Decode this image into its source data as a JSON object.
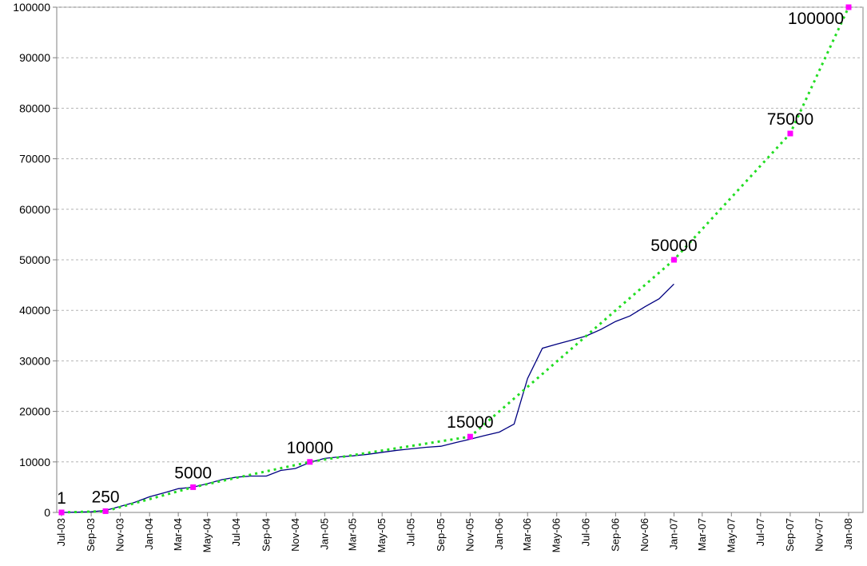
{
  "chart_data": {
    "type": "line",
    "title": "",
    "xlabel": "",
    "ylabel": "",
    "ylim": [
      0,
      100000
    ],
    "grid": true,
    "y_ticks": [
      "0",
      "10000",
      "20000",
      "30000",
      "40000",
      "50000",
      "60000",
      "70000",
      "80000",
      "90000",
      "100000"
    ],
    "x_ticks": [
      "Jul-03",
      "Sep-03",
      "Nov-03",
      "Jan-04",
      "Mar-04",
      "May-04",
      "Jul-04",
      "Sep-04",
      "Nov-04",
      "Jan-05",
      "Mar-05",
      "May-05",
      "Jul-05",
      "Sep-05",
      "Nov-05",
      "Jan-06",
      "Mar-06",
      "May-06",
      "Jul-06",
      "Sep-06",
      "Nov-06",
      "Jan-07",
      "Mar-07",
      "May-07",
      "Jul-07",
      "Sep-07",
      "Nov-07",
      "Jan-08"
    ],
    "series": [
      {
        "style": "solid",
        "color": "#000080",
        "points": [
          {
            "x": "2003-07-01",
            "y": 1
          },
          {
            "x": "2003-08-01",
            "y": 50
          },
          {
            "x": "2003-09-01",
            "y": 150
          },
          {
            "x": "2003-10-01",
            "y": 400
          },
          {
            "x": "2003-11-01",
            "y": 1200
          },
          {
            "x": "2003-12-01",
            "y": 2000
          },
          {
            "x": "2004-01-01",
            "y": 3100
          },
          {
            "x": "2004-02-01",
            "y": 3900
          },
          {
            "x": "2004-03-01",
            "y": 4700
          },
          {
            "x": "2004-04-01",
            "y": 5000
          },
          {
            "x": "2004-05-01",
            "y": 5700
          },
          {
            "x": "2004-06-01",
            "y": 6500
          },
          {
            "x": "2004-07-01",
            "y": 7000
          },
          {
            "x": "2004-08-01",
            "y": 7200
          },
          {
            "x": "2004-09-01",
            "y": 7200
          },
          {
            "x": "2004-10-01",
            "y": 8300
          },
          {
            "x": "2004-11-01",
            "y": 8700
          },
          {
            "x": "2004-12-01",
            "y": 9900
          },
          {
            "x": "2005-01-01",
            "y": 10700
          },
          {
            "x": "2005-02-01",
            "y": 11000
          },
          {
            "x": "2005-03-01",
            "y": 11200
          },
          {
            "x": "2005-04-01",
            "y": 11500
          },
          {
            "x": "2005-05-01",
            "y": 11900
          },
          {
            "x": "2005-06-01",
            "y": 12300
          },
          {
            "x": "2005-07-01",
            "y": 12600
          },
          {
            "x": "2005-08-01",
            "y": 12900
          },
          {
            "x": "2005-09-01",
            "y": 13100
          },
          {
            "x": "2005-10-01",
            "y": 13800
          },
          {
            "x": "2005-11-01",
            "y": 14500
          },
          {
            "x": "2005-12-01",
            "y": 15200
          },
          {
            "x": "2006-01-01",
            "y": 15900
          },
          {
            "x": "2006-02-01",
            "y": 17500
          },
          {
            "x": "2006-03-01",
            "y": 26500
          },
          {
            "x": "2006-04-01",
            "y": 32500
          },
          {
            "x": "2006-05-01",
            "y": 33300
          },
          {
            "x": "2006-06-01",
            "y": 34100
          },
          {
            "x": "2006-07-01",
            "y": 34900
          },
          {
            "x": "2006-08-01",
            "y": 36200
          },
          {
            "x": "2006-09-01",
            "y": 37800
          },
          {
            "x": "2006-10-01",
            "y": 38900
          },
          {
            "x": "2006-11-01",
            "y": 40700
          },
          {
            "x": "2006-12-01",
            "y": 42300
          },
          {
            "x": "2007-01-01",
            "y": 45200
          }
        ]
      },
      {
        "style": "dotted",
        "color": "#22dd22",
        "points": [
          {
            "x": "2003-07-01",
            "y": 1
          },
          {
            "x": "2003-10-01",
            "y": 250
          },
          {
            "x": "2004-04-01",
            "y": 5000
          },
          {
            "x": "2004-12-01",
            "y": 10000
          },
          {
            "x": "2005-11-01",
            "y": 15000
          },
          {
            "x": "2007-01-01",
            "y": 50000
          },
          {
            "x": "2007-09-01",
            "y": 75000
          },
          {
            "x": "2008-01-01",
            "y": 100000
          }
        ]
      }
    ],
    "milestones": [
      {
        "x": "2003-07-01",
        "y": 1,
        "label": "1"
      },
      {
        "x": "2003-10-01",
        "y": 250,
        "label": "250"
      },
      {
        "x": "2004-04-01",
        "y": 5000,
        "label": "5000"
      },
      {
        "x": "2004-12-01",
        "y": 10000,
        "label": "10000"
      },
      {
        "x": "2005-11-01",
        "y": 15000,
        "label": "15000"
      },
      {
        "x": "2007-01-01",
        "y": 50000,
        "label": "50000"
      },
      {
        "x": "2007-09-01",
        "y": 75000,
        "label": "75000"
      },
      {
        "x": "2008-01-01",
        "y": 100000,
        "label": "100000"
      }
    ],
    "milestone_color": "#ff00ff"
  }
}
